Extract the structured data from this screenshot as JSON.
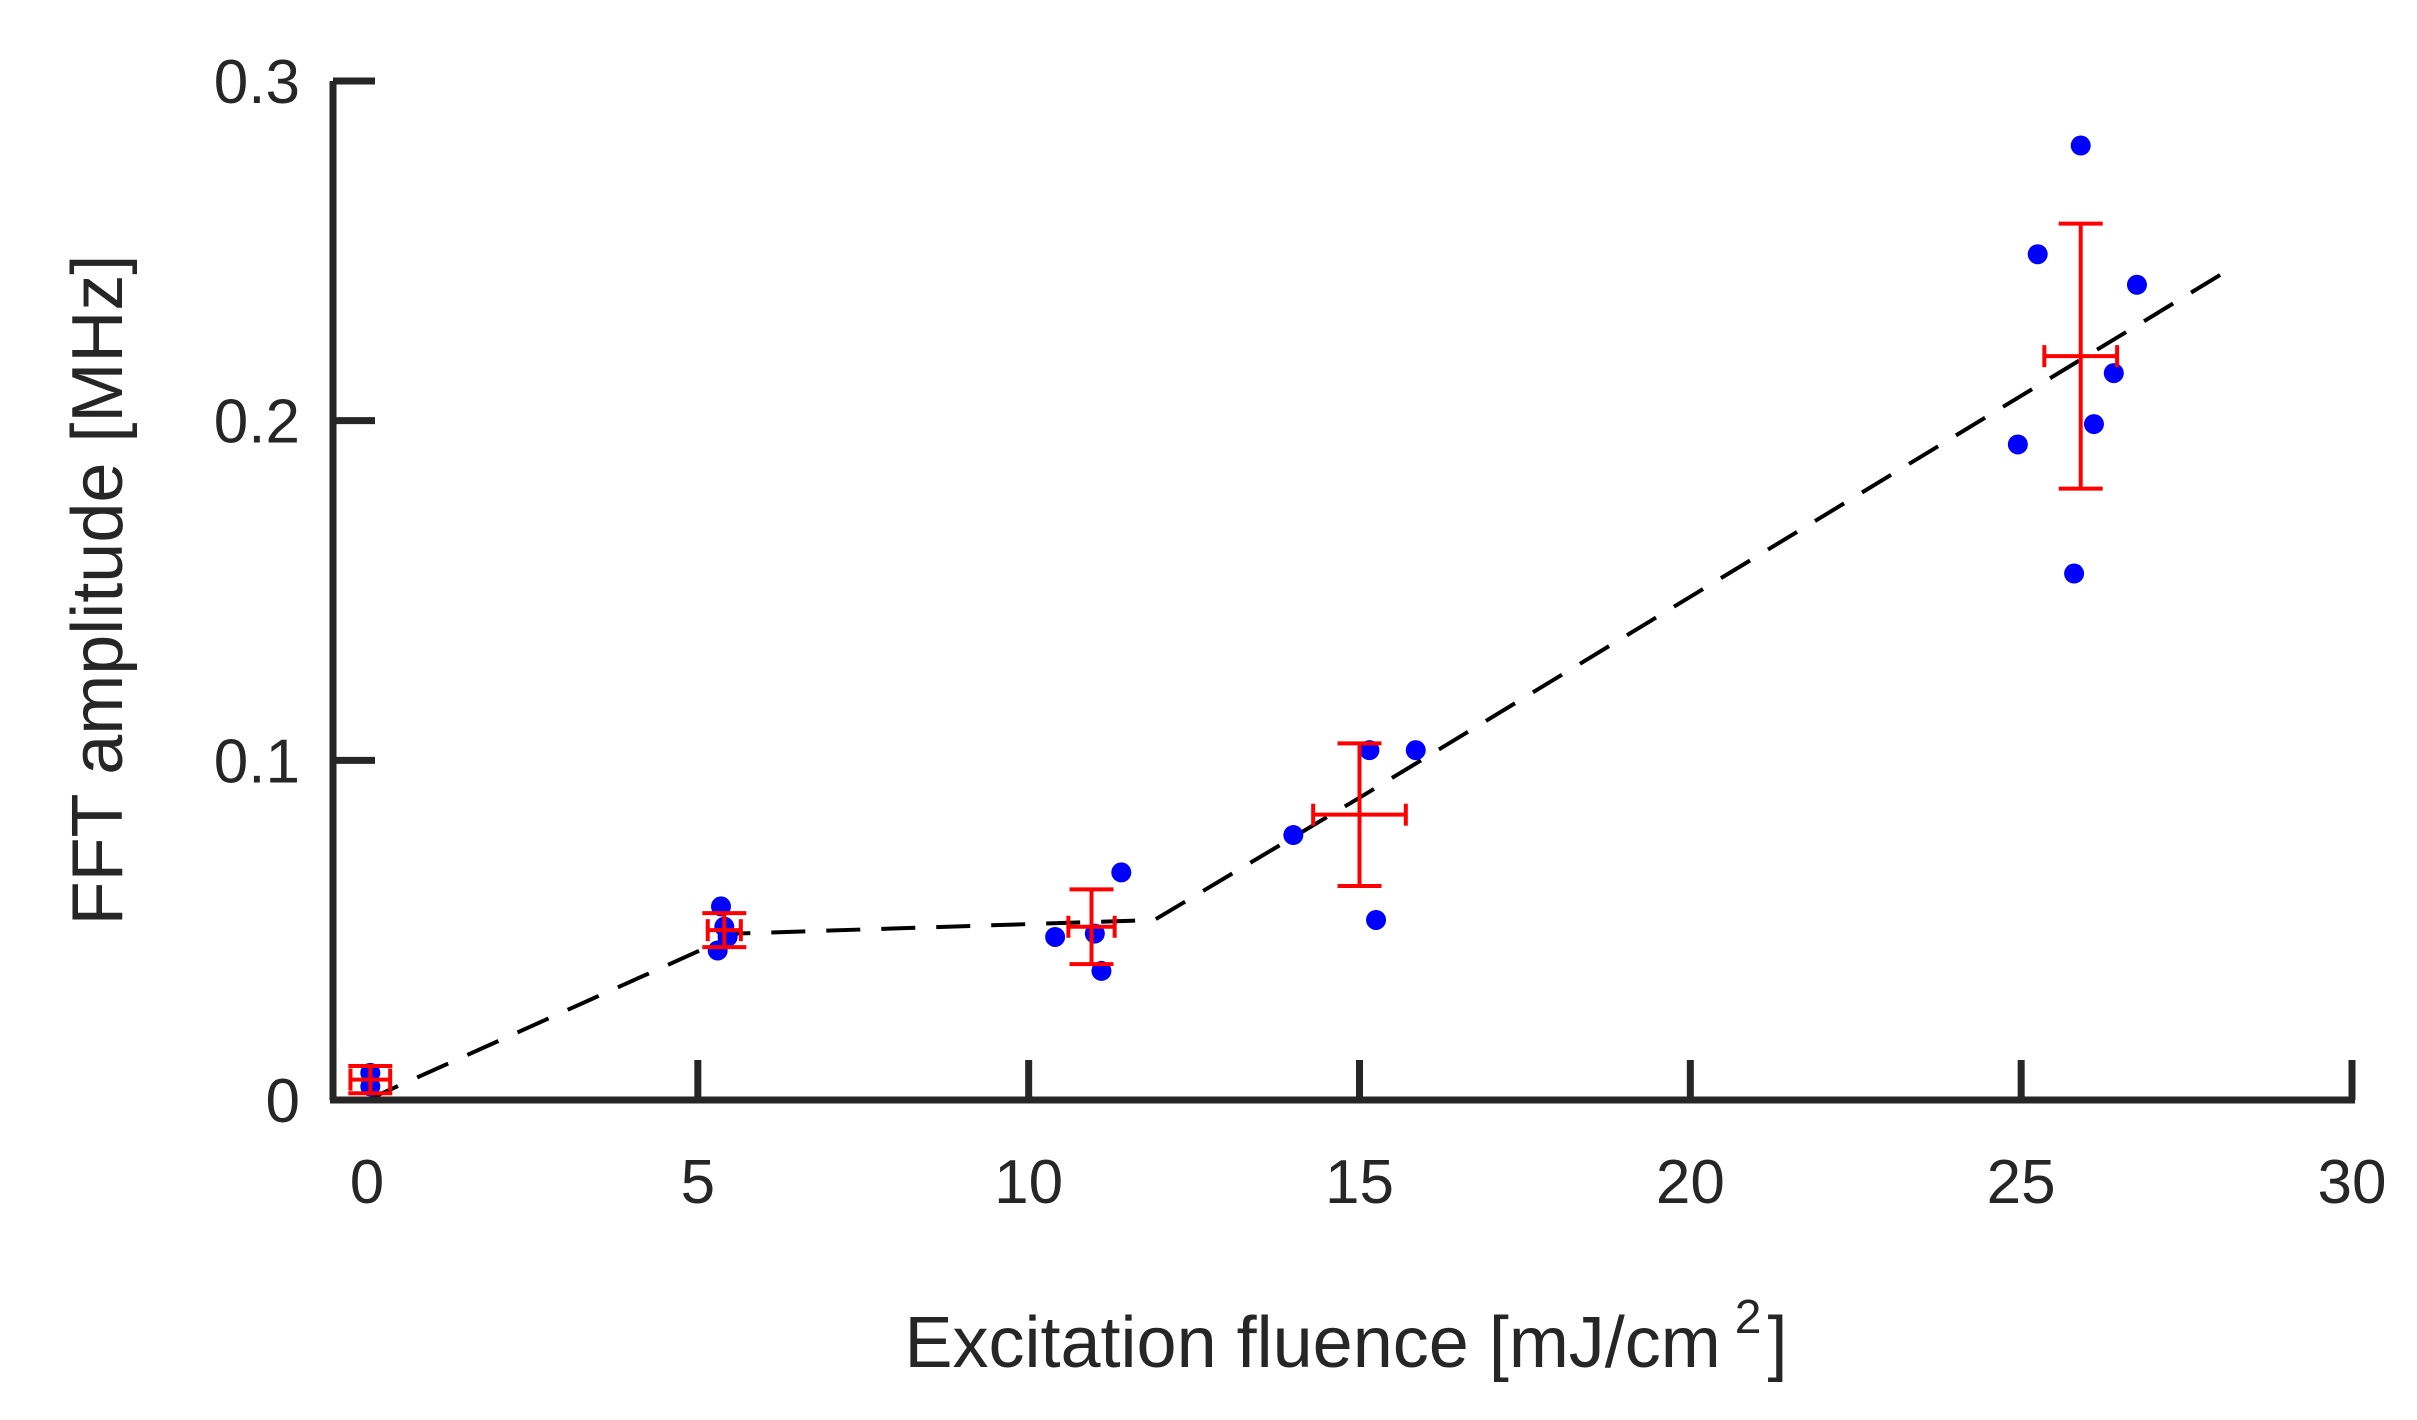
{
  "chart_data": {
    "type": "scatter",
    "title": "",
    "xlabel": "Excitation fluence [mJ/cm",
    "xlabel_sup": "2",
    "xlabel_suffix": "]",
    "ylabel": "FFT amplitude [MHz]",
    "xlim": [
      0,
      30
    ],
    "ylim": [
      0,
      0.3
    ],
    "xticks": [
      0,
      5,
      10,
      15,
      20,
      25,
      30
    ],
    "xtick_labels": [
      "0",
      "5",
      "10",
      "15",
      "20",
      "25",
      "30"
    ],
    "yticks": [
      0,
      0.1,
      0.2,
      0.3
    ],
    "ytick_labels": [
      "0",
      "0.1",
      "0.2",
      "0.3"
    ],
    "grid": false,
    "legend": "none",
    "colors": {
      "points": "#0000ff",
      "errorbars": "#ff0000",
      "fit": "#000000",
      "axes": "#262626"
    },
    "series": [
      {
        "type": "scatter",
        "color": "#0000ff",
        "points": [
          {
            "x": 0.05,
            "y": 0.004
          },
          {
            "x": 0.05,
            "y": 0.008
          },
          {
            "x": 5.3,
            "y": 0.044
          },
          {
            "x": 5.35,
            "y": 0.057
          },
          {
            "x": 5.4,
            "y": 0.051
          },
          {
            "x": 5.45,
            "y": 0.048
          },
          {
            "x": 10.4,
            "y": 0.048
          },
          {
            "x": 11.0,
            "y": 0.049
          },
          {
            "x": 11.1,
            "y": 0.038
          },
          {
            "x": 11.4,
            "y": 0.067
          },
          {
            "x": 14.0,
            "y": 0.078
          },
          {
            "x": 15.15,
            "y": 0.103
          },
          {
            "x": 15.25,
            "y": 0.053
          },
          {
            "x": 15.85,
            "y": 0.103
          },
          {
            "x": 24.95,
            "y": 0.193
          },
          {
            "x": 25.25,
            "y": 0.249
          },
          {
            "x": 25.8,
            "y": 0.155
          },
          {
            "x": 25.9,
            "y": 0.281
          },
          {
            "x": 26.1,
            "y": 0.199
          },
          {
            "x": 26.4,
            "y": 0.214
          },
          {
            "x": 26.75,
            "y": 0.24
          }
        ]
      },
      {
        "type": "errorbar",
        "color": "#ff0000",
        "points": [
          {
            "x": 0.05,
            "y": 0.006,
            "xerr": 0.3,
            "yerr": 0.004
          },
          {
            "x": 5.4,
            "y": 0.05,
            "xerr": 0.25,
            "yerr": 0.005
          },
          {
            "x": 10.95,
            "y": 0.051,
            "xerr": 0.35,
            "yerr": 0.011
          },
          {
            "x": 15.0,
            "y": 0.084,
            "xerr": 0.7,
            "yerr": 0.021
          },
          {
            "x": 25.9,
            "y": 0.219,
            "xerr": 0.55,
            "yerr": 0.039
          }
        ]
      },
      {
        "type": "line",
        "style": "dashed",
        "color": "#000000",
        "x": [
          0,
          5.6,
          11.9,
          15.0,
          28.1
        ],
        "y": [
          0,
          0.049,
          0.053,
          0.089,
          0.244
        ]
      }
    ]
  }
}
